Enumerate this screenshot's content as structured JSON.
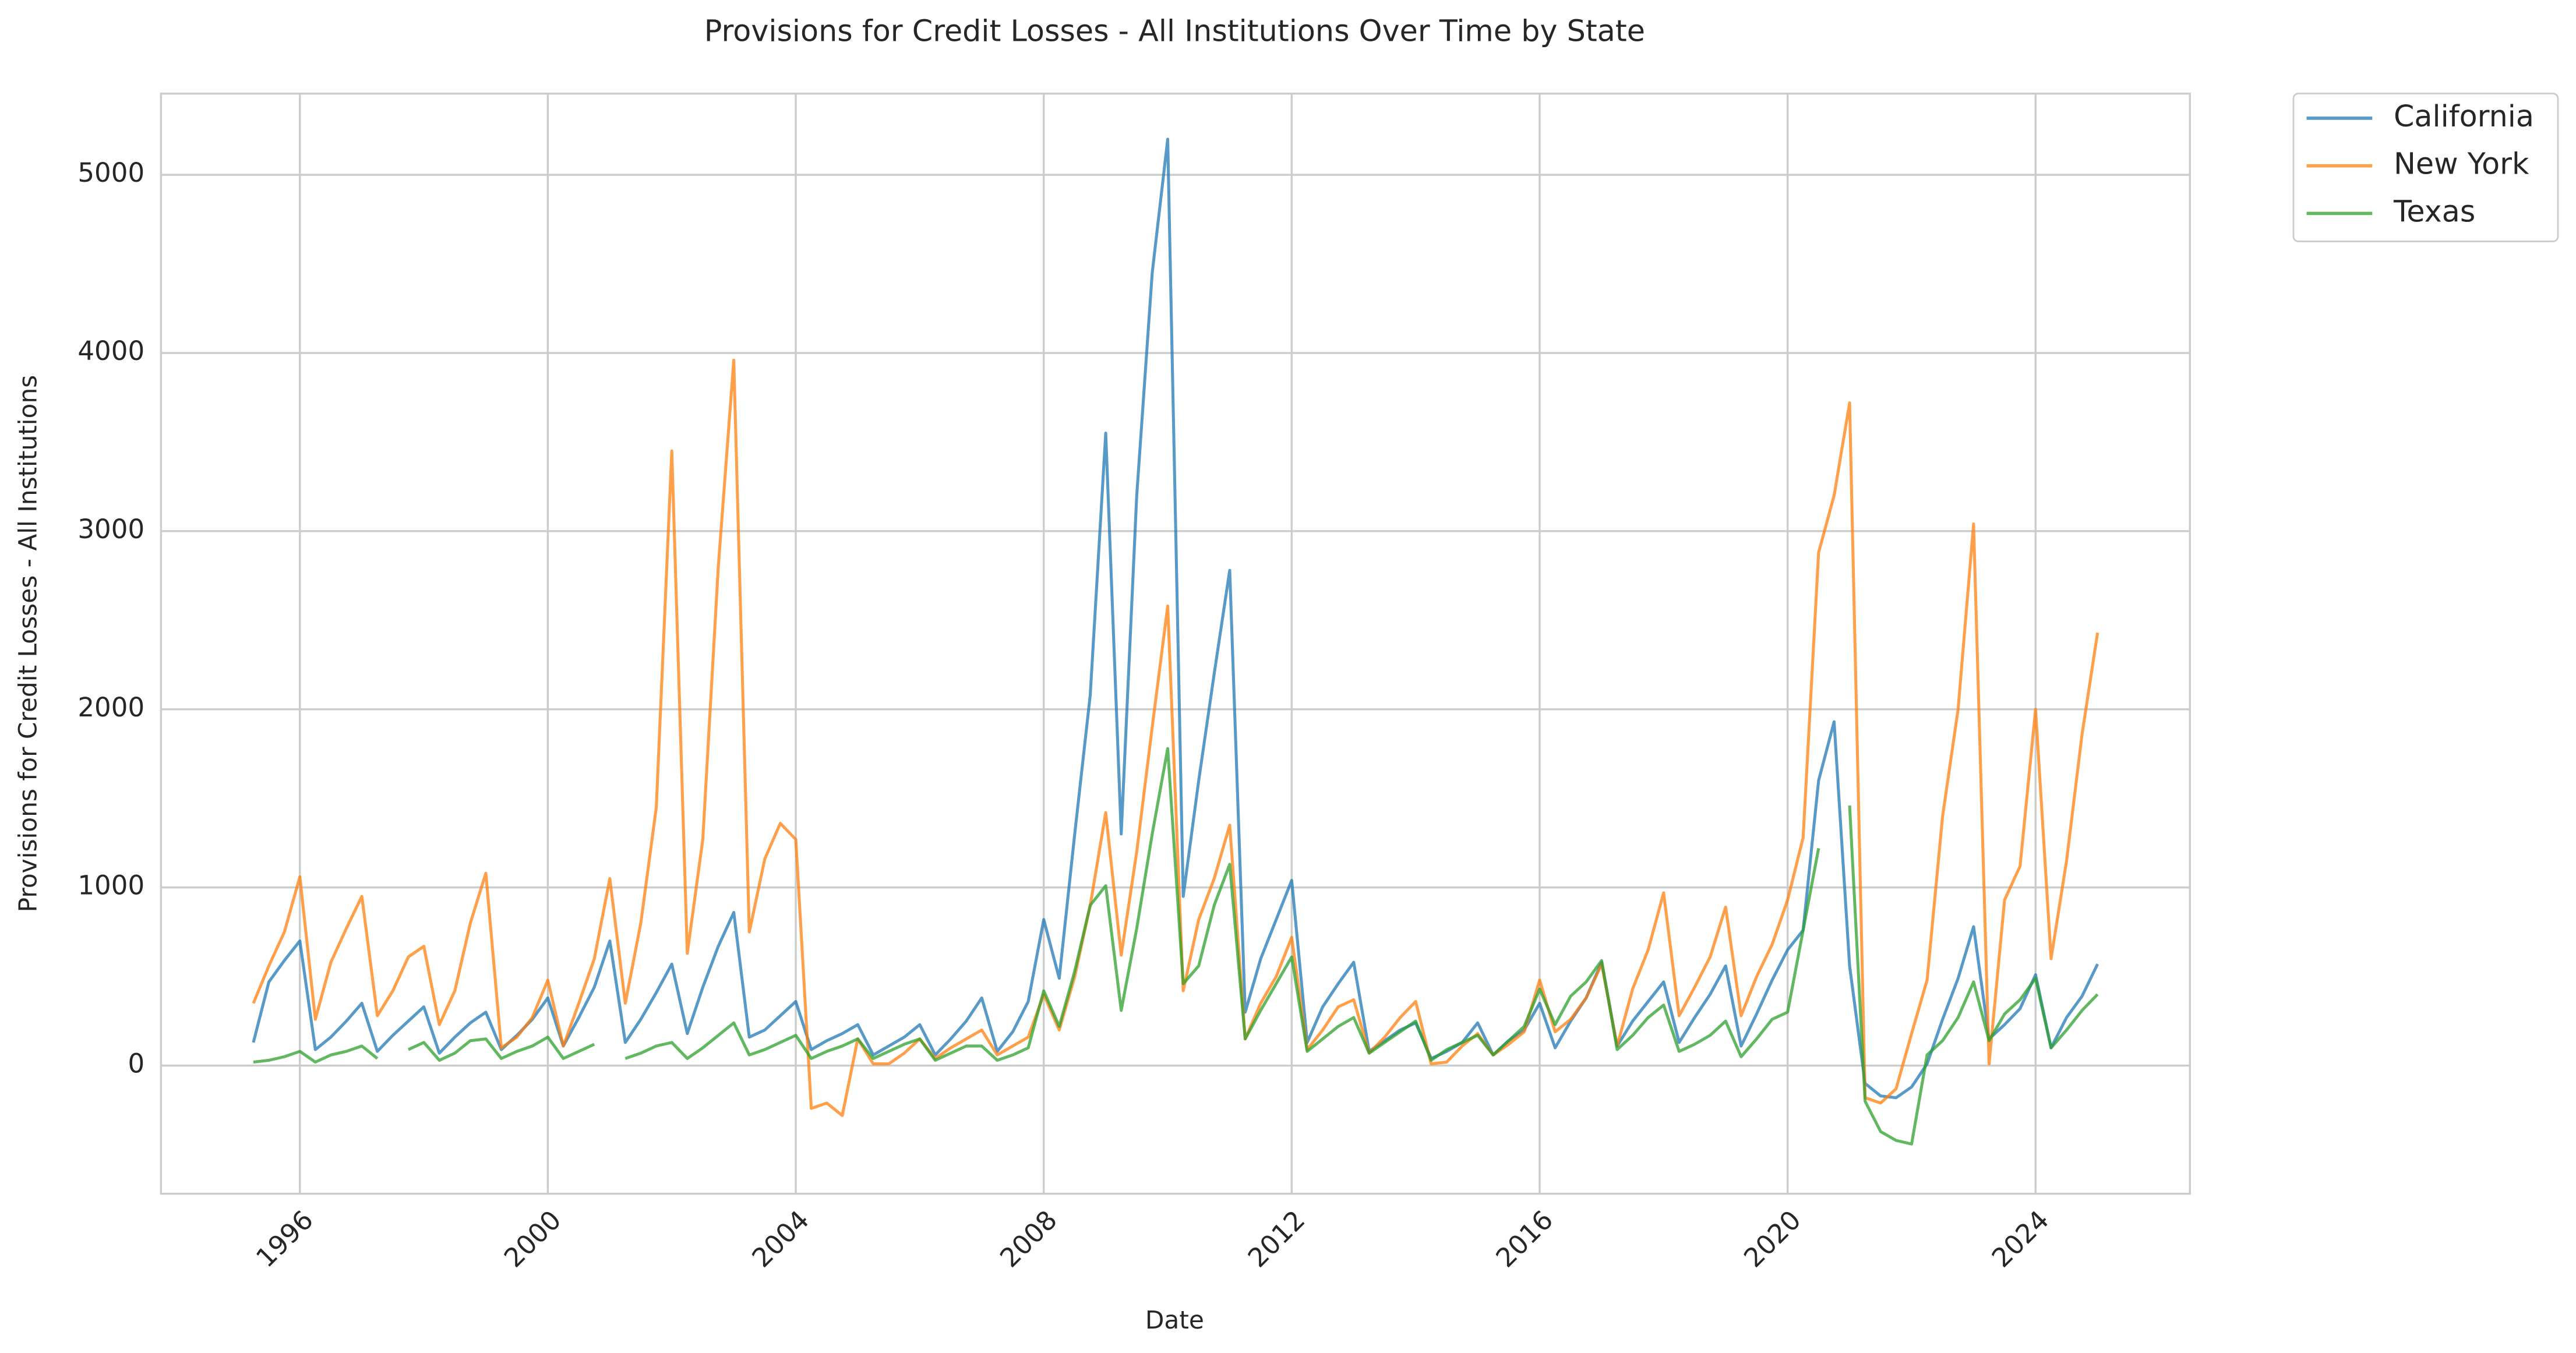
{
  "chart_data": {
    "type": "line",
    "title": "Provisions for Credit Losses - All Institutions Over Time by State",
    "xlabel": "Date",
    "ylabel": "Provisions for Credit Losses - All Institutions",
    "x": [
      1995.25,
      1995.5,
      1995.75,
      1996,
      1996.25,
      1996.5,
      1996.75,
      1997,
      1997.25,
      1997.5,
      1997.75,
      1998,
      1998.25,
      1998.5,
      1998.75,
      1999,
      1999.25,
      1999.5,
      1999.75,
      2000,
      2000.25,
      2000.5,
      2000.75,
      2001,
      2001.25,
      2001.5,
      2001.75,
      2002,
      2002.25,
      2002.5,
      2002.75,
      2003,
      2003.25,
      2003.5,
      2003.75,
      2004,
      2004.25,
      2004.5,
      2004.75,
      2005,
      2005.25,
      2005.5,
      2005.75,
      2006,
      2006.25,
      2006.5,
      2006.75,
      2007,
      2007.25,
      2007.5,
      2007.75,
      2008,
      2008.25,
      2008.5,
      2008.75,
      2009,
      2009.25,
      2009.5,
      2009.75,
      2010,
      2010.25,
      2010.5,
      2010.75,
      2011,
      2011.25,
      2011.5,
      2011.75,
      2012,
      2012.25,
      2012.5,
      2012.75,
      2013,
      2013.25,
      2013.5,
      2013.75,
      2014,
      2014.25,
      2014.5,
      2014.75,
      2015,
      2015.25,
      2015.5,
      2015.75,
      2016,
      2016.25,
      2016.5,
      2016.75,
      2017,
      2017.25,
      2017.5,
      2017.75,
      2018,
      2018.25,
      2018.5,
      2018.75,
      2019,
      2019.25,
      2019.5,
      2019.75,
      2020,
      2020.25,
      2020.5,
      2020.75,
      2021,
      2021.25,
      2021.5,
      2021.75,
      2022,
      2022.25,
      2022.5,
      2022.75,
      2023,
      2023.25,
      2023.5,
      2023.75,
      2024,
      2024.25,
      2024.5,
      2024.75,
      2025
    ],
    "series": [
      {
        "name": "California",
        "color": "#1f77b4",
        "values": [
          130,
          470,
          590,
          700,
          90,
          160,
          250,
          350,
          80,
          170,
          250,
          330,
          70,
          160,
          240,
          300,
          90,
          170,
          260,
          380,
          110,
          270,
          440,
          700,
          130,
          260,
          410,
          570,
          180,
          440,
          670,
          860,
          160,
          200,
          280,
          360,
          90,
          140,
          180,
          230,
          60,
          110,
          160,
          230,
          60,
          150,
          250,
          380,
          80,
          190,
          360,
          820,
          490,
          1300,
          2080,
          3550,
          1300,
          3200,
          4450,
          5200,
          950,
          1600,
          2200,
          2780,
          300,
          600,
          820,
          1040,
          130,
          330,
          460,
          580,
          80,
          140,
          200,
          240,
          40,
          80,
          130,
          240,
          60,
          140,
          200,
          350,
          100,
          250,
          380,
          580,
          110,
          250,
          360,
          470,
          130,
          270,
          400,
          560,
          110,
          290,
          480,
          650,
          760,
          1600,
          1930,
          560,
          -100,
          -170,
          -180,
          -120,
          10,
          260,
          490,
          780,
          150,
          230,
          320,
          510,
          100,
          270,
          390,
          570
        ]
      },
      {
        "name": "New York",
        "color": "#ff7f0e",
        "values": [
          350,
          560,
          750,
          1060,
          260,
          580,
          770,
          950,
          280,
          420,
          610,
          670,
          230,
          420,
          800,
          1080,
          100,
          160,
          270,
          480,
          110,
          350,
          600,
          1050,
          350,
          800,
          1450,
          3450,
          630,
          1270,
          2800,
          3960,
          750,
          1160,
          1360,
          1270,
          -240,
          -210,
          -280,
          150,
          10,
          10,
          70,
          150,
          40,
          100,
          150,
          200,
          60,
          110,
          160,
          400,
          200,
          500,
          900,
          1420,
          620,
          1200,
          1900,
          2580,
          420,
          820,
          1050,
          1350,
          150,
          350,
          500,
          720,
          90,
          200,
          330,
          370,
          70,
          160,
          270,
          360,
          10,
          20,
          110,
          180,
          60,
          120,
          190,
          480,
          190,
          260,
          380,
          570,
          110,
          430,
          650,
          970,
          280,
          440,
          610,
          890,
          280,
          500,
          680,
          930,
          1280,
          2880,
          3200,
          3720,
          -180,
          -210,
          -130,
          180,
          480,
          1400,
          2000,
          3040,
          10,
          930,
          1120,
          2000,
          600,
          1150,
          1860,
          2430
        ]
      },
      {
        "name": "Texas",
        "color": "#2ca02c",
        "values": [
          20,
          30,
          50,
          80,
          20,
          60,
          80,
          110,
          40,
          null,
          90,
          130,
          30,
          70,
          140,
          150,
          40,
          80,
          110,
          160,
          40,
          80,
          120,
          null,
          40,
          70,
          110,
          130,
          40,
          100,
          170,
          240,
          60,
          90,
          130,
          170,
          40,
          80,
          110,
          150,
          40,
          80,
          120,
          150,
          30,
          70,
          110,
          110,
          30,
          60,
          100,
          420,
          220,
          530,
          900,
          1010,
          310,
          770,
          1300,
          1780,
          460,
          560,
          900,
          1130,
          150,
          310,
          460,
          610,
          80,
          150,
          220,
          270,
          70,
          130,
          190,
          250,
          30,
          90,
          130,
          170,
          60,
          140,
          220,
          430,
          230,
          390,
          470,
          590,
          90,
          170,
          270,
          340,
          80,
          120,
          170,
          250,
          50,
          150,
          260,
          300,
          760,
          1220,
          null,
          1460,
          -200,
          -370,
          -420,
          -440,
          60,
          140,
          270,
          470,
          140,
          290,
          370,
          490,
          100,
          200,
          310,
          400
        ]
      }
    ],
    "xlim": [
      1993.76,
      2026.49
    ],
    "xticks": [
      1996,
      2000,
      2004,
      2008,
      2012,
      2016,
      2020,
      2024
    ],
    "ylim": [
      -719,
      5456
    ],
    "yticks": [
      0,
      1000,
      2000,
      3000,
      4000,
      5000
    ],
    "grid": true,
    "legend": "outside upper right"
  }
}
